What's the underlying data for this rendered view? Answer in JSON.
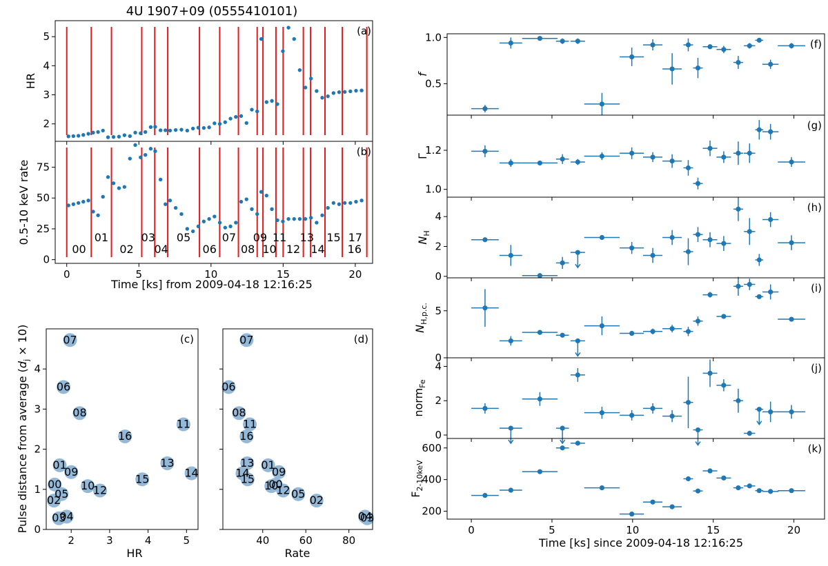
{
  "colors": {
    "marker": "#1f77b4",
    "vline": "#e41a1c",
    "bubble": "#93b8d8"
  },
  "chart_data": {
    "title": "4U 1907+09 (0555410101)",
    "left_top": {
      "type": "scatter",
      "xlabel": "Time [ks] from 2009-04-18 12:16:25",
      "xlim": [
        -0.8,
        21.2
      ],
      "xticks": [
        0,
        5,
        10,
        15,
        20
      ],
      "boundaries": [
        0,
        1.7,
        3.1,
        5.2,
        6.1,
        7.0,
        9.2,
        10.6,
        11.9,
        13.2,
        13.6,
        14.5,
        15.0,
        16.4,
        16.9,
        17.9,
        19.1,
        20.8
      ],
      "hr": {
        "label": "(a)",
        "ylabel": "HR",
        "ylim": [
          1.4,
          5.55
        ],
        "yticks": [
          2,
          3,
          4,
          5
        ],
        "x": [
          0.12,
          0.46,
          0.81,
          1.15,
          1.5,
          1.83,
          2.17,
          2.51,
          2.86,
          3.24,
          3.62,
          4.0,
          4.38,
          4.75,
          5.12,
          5.45,
          5.82,
          6.13,
          6.5,
          6.84,
          7.16,
          7.55,
          7.95,
          8.35,
          8.75,
          9.12,
          9.5,
          9.87,
          10.24,
          10.61,
          10.98,
          11.35,
          11.72,
          12.09,
          12.46,
          12.83,
          13.2,
          13.48,
          13.85,
          14.22,
          14.6,
          14.98,
          15.37,
          15.76,
          16.15,
          16.54,
          16.93,
          17.32,
          17.71,
          18.1,
          18.49,
          18.88,
          19.27,
          19.66,
          20.05,
          20.44
        ],
        "y": [
          1.57,
          1.58,
          1.59,
          1.62,
          1.66,
          1.7,
          1.72,
          1.77,
          1.54,
          1.55,
          1.56,
          1.61,
          1.58,
          1.7,
          1.68,
          1.72,
          1.89,
          1.9,
          1.78,
          1.78,
          1.77,
          1.79,
          1.8,
          1.77,
          1.84,
          1.87,
          1.86,
          1.88,
          2.02,
          2.0,
          2.06,
          2.18,
          2.24,
          2.27,
          2.03,
          2.49,
          2.43,
          4.92,
          2.75,
          2.79,
          2.68,
          4.5,
          5.31,
          4.92,
          3.85,
          3.25,
          3.56,
          3.13,
          2.9,
          2.95,
          3.06,
          3.09,
          3.1,
          3.12,
          3.14,
          3.15
        ]
      },
      "rate": {
        "label": "(b)",
        "ylabel": "0.5-10 keV rate",
        "ylim": [
          -3,
          96
        ],
        "yticks": [
          0,
          25,
          50,
          75
        ],
        "x": [
          0.12,
          0.46,
          0.81,
          1.15,
          1.5,
          1.83,
          2.17,
          2.51,
          2.86,
          3.24,
          3.62,
          4.0,
          4.38,
          4.75,
          5.12,
          5.45,
          5.82,
          6.13,
          6.5,
          6.84,
          7.16,
          7.55,
          7.95,
          8.35,
          8.75,
          9.12,
          9.5,
          9.87,
          10.24,
          10.61,
          10.98,
          11.35,
          11.72,
          12.09,
          12.46,
          12.83,
          13.2,
          13.48,
          13.85,
          14.22,
          14.6,
          14.98,
          15.37,
          15.76,
          16.15,
          16.54,
          16.93,
          17.32,
          17.71,
          18.1,
          18.49,
          18.88,
          19.27,
          19.66,
          20.05,
          20.44
        ],
        "y": [
          44,
          45,
          46,
          47,
          48,
          39,
          36,
          51,
          67,
          62,
          58,
          59,
          82,
          93,
          83,
          85,
          90,
          88,
          65,
          45,
          48,
          42,
          37,
          25,
          23,
          27,
          31,
          33,
          35,
          30,
          26,
          27,
          30,
          47,
          49,
          41,
          37,
          55,
          52,
          41,
          32,
          31,
          33,
          33,
          33,
          33,
          34,
          30,
          36,
          42,
          46,
          45,
          46,
          46,
          47,
          48
        ]
      },
      "segment_labels": [
        "00",
        "01",
        "02",
        "03",
        "04",
        "05",
        "06",
        "07",
        "08",
        "09",
        "10",
        "11",
        "12",
        "13",
        "14",
        "15",
        "16",
        "17"
      ]
    },
    "pulse_vs_hr": {
      "type": "scatter",
      "label": "(c)",
      "xlabel": "HR",
      "ylabel": "Pulse distance from average (d_j × 10)",
      "xlim": [
        1.35,
        5.3
      ],
      "ylim": [
        0,
        5.0
      ],
      "xticks": [
        2,
        3,
        4,
        5
      ],
      "yticks": [
        0,
        1,
        2,
        3,
        4
      ],
      "points": [
        {
          "id": "07",
          "x": 1.97,
          "y": 4.72
        },
        {
          "id": "06",
          "x": 1.8,
          "y": 3.55
        },
        {
          "id": "08",
          "x": 2.22,
          "y": 2.9
        },
        {
          "id": "11",
          "x": 4.92,
          "y": 2.62
        },
        {
          "id": "16",
          "x": 3.4,
          "y": 2.32
        },
        {
          "id": "01",
          "x": 1.7,
          "y": 1.6
        },
        {
          "id": "13",
          "x": 4.5,
          "y": 1.65
        },
        {
          "id": "09",
          "x": 2.0,
          "y": 1.43
        },
        {
          "id": "14",
          "x": 5.13,
          "y": 1.4
        },
        {
          "id": "15",
          "x": 3.85,
          "y": 1.25
        },
        {
          "id": "00",
          "x": 1.57,
          "y": 1.12
        },
        {
          "id": "10",
          "x": 2.43,
          "y": 1.08
        },
        {
          "id": "12",
          "x": 2.75,
          "y": 0.97
        },
        {
          "id": "05",
          "x": 1.75,
          "y": 0.88
        },
        {
          "id": "02",
          "x": 1.55,
          "y": 0.72
        },
        {
          "id": "04",
          "x": 1.88,
          "y": 0.32
        },
        {
          "id": "03",
          "x": 1.68,
          "y": 0.28
        }
      ]
    },
    "pulse_vs_rate": {
      "type": "scatter",
      "label": "(d)",
      "xlabel": "Rate",
      "xlim": [
        21.5,
        91.0
      ],
      "ylim": [
        0,
        5.0
      ],
      "xticks": [
        40,
        60,
        80
      ],
      "points": [
        {
          "id": "07",
          "x": 32.5,
          "y": 4.72
        },
        {
          "id": "06",
          "x": 24.2,
          "y": 3.55
        },
        {
          "id": "08",
          "x": 29.0,
          "y": 2.9
        },
        {
          "id": "11",
          "x": 34.0,
          "y": 2.62
        },
        {
          "id": "16",
          "x": 32.5,
          "y": 2.32
        },
        {
          "id": "01",
          "x": 42.5,
          "y": 1.6
        },
        {
          "id": "13",
          "x": 32.8,
          "y": 1.65
        },
        {
          "id": "09",
          "x": 47.5,
          "y": 1.43
        },
        {
          "id": "14",
          "x": 30.6,
          "y": 1.4
        },
        {
          "id": "15",
          "x": 33.0,
          "y": 1.25
        },
        {
          "id": "00",
          "x": 46.0,
          "y": 1.12
        },
        {
          "id": "10",
          "x": 44.0,
          "y": 1.08
        },
        {
          "id": "12",
          "x": 49.5,
          "y": 0.97
        },
        {
          "id": "05",
          "x": 56.5,
          "y": 0.88
        },
        {
          "id": "02",
          "x": 65.0,
          "y": 0.72
        },
        {
          "id": "04",
          "x": 87.5,
          "y": 0.32
        },
        {
          "id": "03",
          "x": 88.5,
          "y": 0.28
        }
      ]
    },
    "right": {
      "type": "scatter",
      "xlabel": "Time [ks] since 2009-04-18 12:16:25",
      "xlim": [
        -1.5,
        21.9
      ],
      "xticks": [
        0,
        5,
        10,
        15,
        20
      ],
      "x": [
        0.85,
        2.45,
        4.25,
        5.65,
        6.6,
        8.1,
        9.95,
        11.25,
        12.45,
        13.45,
        14.05,
        14.8,
        15.65,
        16.55,
        17.25,
        17.85,
        18.55,
        19.85
      ],
      "xerr": [
        0.85,
        0.7,
        1.1,
        0.4,
        0.45,
        1.1,
        0.75,
        0.6,
        0.6,
        0.3,
        0.3,
        0.45,
        0.45,
        0.3,
        0.35,
        0.25,
        0.5,
        0.85
      ],
      "panels": [
        {
          "key": "f",
          "label": "(f)",
          "ylabel": "f",
          "ylim": [
            0.16,
            1.04
          ],
          "yticks": [
            0.5,
            1.0
          ],
          "tick_labels": [
            "0.5",
            "1.0"
          ],
          "y": [
            0.23,
            0.94,
            0.99,
            0.96,
            0.96,
            0.28,
            0.79,
            0.92,
            0.66,
            0.92,
            0.67,
            0.9,
            0.87,
            0.73,
            0.91,
            0.97,
            0.71,
            0.91
          ],
          "yerr": [
            0.04,
            0.06,
            0.01,
            0.03,
            0.03,
            0.12,
            0.1,
            0.06,
            0.17,
            0.07,
            0.11,
            0.02,
            0.04,
            0.07,
            0.03,
            0.02,
            0.05,
            0.03
          ],
          "upper_limit": []
        },
        {
          "key": "gamma",
          "label": "(g)",
          "ylabel": "Γ",
          "ylim": [
            0.96,
            1.38
          ],
          "yticks": [
            1.0,
            1.2
          ],
          "tick_labels": [
            "1.0",
            "1.2"
          ],
          "y": [
            1.195,
            1.135,
            1.135,
            1.155,
            1.14,
            1.17,
            1.185,
            1.165,
            1.145,
            1.11,
            1.03,
            1.21,
            1.165,
            1.185,
            1.185,
            1.305,
            1.295,
            1.14
          ],
          "yerr": [
            0.03,
            0.02,
            0.01,
            0.025,
            0.015,
            0.02,
            0.03,
            0.025,
            0.035,
            0.04,
            0.03,
            0.04,
            0.03,
            0.06,
            0.05,
            0.05,
            0.04,
            0.025
          ],
          "upper_limit": []
        },
        {
          "key": "nh",
          "label": "(h)",
          "ylabel": "N_H",
          "ylim": [
            -0.1,
            5.3
          ],
          "yticks": [
            0,
            2,
            4
          ],
          "tick_labels": [
            "0",
            "2",
            "4"
          ],
          "y": [
            2.45,
            1.4,
            0.05,
            0.9,
            1.6,
            2.6,
            1.9,
            1.4,
            2.6,
            1.65,
            2.8,
            2.45,
            2.2,
            4.5,
            3.0,
            1.1,
            3.8,
            2.25
          ],
          "yerr": [
            0.1,
            0.7,
            0.05,
            0.4,
            0.0,
            0.1,
            0.4,
            0.5,
            0.5,
            0.9,
            0.5,
            0.5,
            0.5,
            0.8,
            0.9,
            0.4,
            0.5,
            0.5
          ],
          "upper_limit": [
            4
          ]
        },
        {
          "key": "nhpc",
          "label": "(i)",
          "ylabel": "N_H,p.c.",
          "ylim": [
            0,
            8.5
          ],
          "yticks": [
            0,
            5
          ],
          "tick_labels": [
            "0",
            "5"
          ],
          "y": [
            5.3,
            1.8,
            2.7,
            2.4,
            1.8,
            3.4,
            2.6,
            2.8,
            3.1,
            2.8,
            3.9,
            6.7,
            4.4,
            7.6,
            7.8,
            6.5,
            7.0,
            4.1
          ],
          "yerr": [
            2.0,
            0.5,
            0.1,
            0.2,
            0.0,
            1.0,
            0.2,
            0.3,
            0.4,
            0.5,
            0.5,
            0.3,
            0.1,
            1.0,
            0.6,
            0.2,
            0.8,
            0.1
          ],
          "upper_limit": [
            4
          ]
        },
        {
          "key": "fe",
          "label": "(j)",
          "ylabel": "norm_Fe",
          "ylim": [
            -0.2,
            4.5
          ],
          "yticks": [
            0,
            2,
            4
          ],
          "tick_labels": [
            "0",
            "2",
            "4"
          ],
          "y": [
            1.55,
            0.4,
            2.1,
            0.4,
            3.5,
            1.3,
            1.15,
            1.55,
            1.1,
            1.9,
            0.3,
            3.6,
            2.9,
            2.0,
            0.1,
            1.5,
            1.35,
            1.35
          ],
          "yerr": [
            0.3,
            0.0,
            0.4,
            0.0,
            0.4,
            0.35,
            0.3,
            0.3,
            0.35,
            1.5,
            0.0,
            0.8,
            0.35,
            0.7,
            0.15,
            0.0,
            0.6,
            0.4
          ],
          "upper_limit": [
            1,
            3,
            10,
            15
          ]
        },
        {
          "key": "flux",
          "label": "(k)",
          "ylabel": "F_2-10keV",
          "ylim": [
            150,
            660
          ],
          "yticks": [
            200,
            400,
            600
          ],
          "tick_labels": [
            "200",
            "400",
            "600"
          ],
          "y": [
            300,
            333,
            450,
            600,
            630,
            348,
            182,
            258,
            228,
            405,
            328,
            455,
            410,
            348,
            360,
            330,
            325,
            330
          ],
          "yerr": [
            5,
            5,
            6,
            6,
            6,
            5,
            6,
            5,
            5,
            8,
            5,
            6,
            5,
            5,
            5,
            5,
            5,
            5
          ],
          "upper_limit": []
        }
      ]
    }
  }
}
